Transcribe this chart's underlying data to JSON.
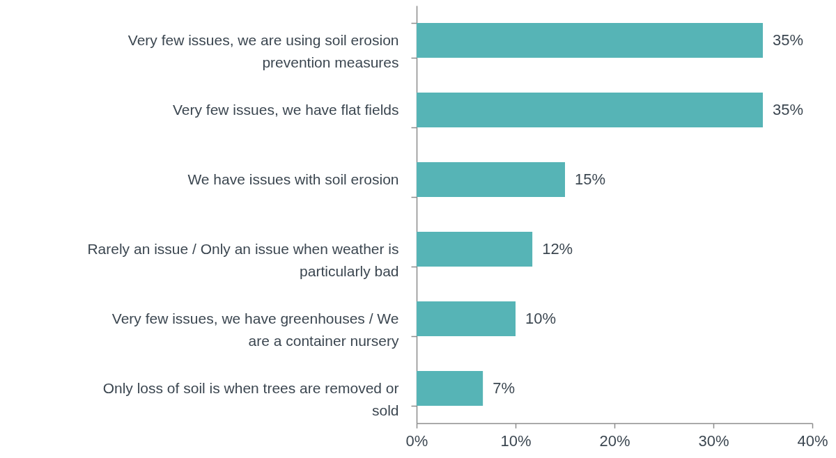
{
  "chart_data": {
    "type": "bar",
    "orientation": "horizontal",
    "categories": [
      "Very few issues, we are using soil erosion prevention measures",
      "Very few issues, we have flat fields",
      "We have issues with soil erosion",
      "Rarely an issue / Only an issue when weather is particularly bad",
      "Very few issues, we have greenhouses / We are a container nursery",
      "Only loss of soil is when trees are removed or sold"
    ],
    "values": [
      35,
      35,
      15,
      11.7,
      10,
      6.7
    ],
    "value_labels": [
      "35%",
      "35%",
      "15%",
      "12%",
      "10%",
      "7%"
    ],
    "color": "#56b4b6",
    "xlim": [
      0,
      40
    ],
    "xticks": [
      {
        "value": 0,
        "label": "0%"
      },
      {
        "value": 10,
        "label": "10%"
      },
      {
        "value": 20,
        "label": "20%"
      },
      {
        "value": 30,
        "label": "30%"
      },
      {
        "value": 40,
        "label": "40%"
      }
    ],
    "grid": false
  }
}
